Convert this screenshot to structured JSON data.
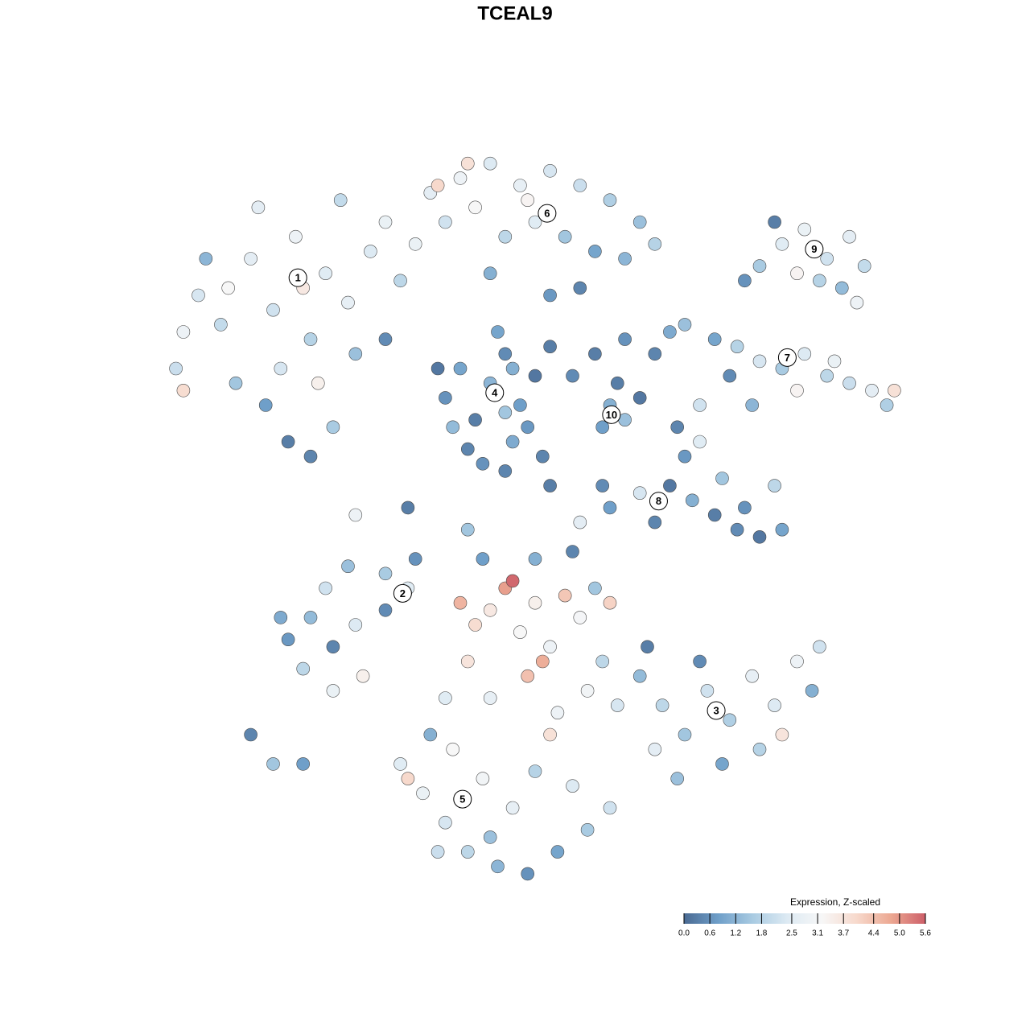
{
  "chart_data": {
    "type": "scatter",
    "title": "TCEAL9",
    "xlim": [
      -50,
      50
    ],
    "ylim": [
      -50,
      50
    ],
    "x": [
      -45,
      -42,
      -38,
      -35,
      -32,
      -30,
      -28,
      -25,
      -22,
      -20,
      -40,
      -36,
      -33,
      -30,
      -27,
      -48,
      -47,
      -44,
      -26,
      -18,
      -34,
      -37,
      -31,
      -41,
      -29,
      -24,
      -20,
      -47,
      -14,
      -10,
      -6,
      -2,
      2,
      6,
      10,
      14,
      -12,
      -8,
      -4,
      0,
      4,
      8,
      12,
      16,
      -1,
      -16,
      6,
      2,
      -6,
      -9,
      -13,
      -12,
      -10,
      -8,
      -6,
      -4,
      -2,
      0,
      -3,
      -9,
      -1,
      -11,
      -5,
      2,
      -7,
      -4,
      1,
      -13,
      -3,
      8,
      12,
      16,
      10,
      12,
      9,
      14,
      5,
      18,
      11,
      30,
      33,
      36,
      39,
      42,
      44,
      41,
      35,
      38,
      43,
      28,
      32,
      20,
      24,
      27,
      30,
      33,
      36,
      39,
      42,
      45,
      47,
      26,
      22,
      29,
      35,
      40,
      48,
      19,
      20,
      18,
      21,
      24,
      27,
      30,
      33,
      28,
      25,
      32,
      14,
      10,
      6,
      16,
      22,
      -33,
      -30,
      -27,
      -24,
      -20,
      -17,
      -28,
      -25,
      -20,
      -31,
      -34,
      -23,
      -27,
      -38,
      -35,
      -31,
      -16,
      -10,
      -8,
      -6,
      -4,
      -2,
      0,
      2,
      4,
      -3,
      6,
      -9,
      -1,
      1,
      8,
      10,
      -6,
      3,
      7,
      -12,
      5,
      0,
      -7,
      9,
      11,
      14,
      17,
      20,
      23,
      26,
      29,
      32,
      35,
      38,
      37,
      30,
      25,
      19,
      22,
      16,
      33,
      15,
      -18,
      -15,
      -12,
      -9,
      -5,
      -1,
      3,
      7,
      10,
      -3,
      -7,
      0,
      5,
      -11,
      -14,
      2,
      -17,
      -6,
      -13,
      -24,
      -17,
      -9,
      -4,
      2,
      9
    ],
    "y": [
      30,
      26,
      35,
      28,
      38,
      24,
      33,
      29,
      36,
      40,
      18,
      15,
      10,
      8,
      12,
      20,
      25,
      35,
      43,
      32,
      20,
      42,
      31,
      31,
      18,
      22,
      24,
      17,
      44,
      46,
      48,
      45,
      47,
      45,
      43,
      40,
      40,
      42,
      38,
      40,
      38,
      36,
      35,
      37,
      43,
      37,
      31,
      30,
      33,
      48,
      45,
      16,
      20,
      13,
      18,
      22,
      15,
      19,
      10,
      9,
      12,
      12,
      25,
      23,
      7,
      14,
      8,
      20,
      20,
      22,
      24,
      22,
      15,
      13,
      12,
      16,
      19,
      25,
      18,
      34,
      37,
      39,
      35,
      38,
      34,
      31,
      33,
      32,
      29,
      32,
      40,
      26,
      24,
      23,
      21,
      20,
      22,
      19,
      18,
      17,
      15,
      19,
      15,
      15,
      17,
      21,
      17,
      12,
      8,
      4,
      2,
      0,
      -2,
      -3,
      -2,
      1,
      5,
      4,
      3,
      1,
      -1,
      -1,
      10,
      -17,
      -14,
      -18,
      -15,
      -8,
      -10,
      -10,
      -7,
      -13,
      -21,
      -14,
      -22,
      -24,
      -30,
      -34,
      -34,
      -6,
      -12,
      -15,
      -13,
      -10,
      -16,
      -12,
      -18,
      -11,
      -9,
      -14,
      -20,
      -22,
      -20,
      -10,
      -12,
      -25,
      -27,
      -24,
      -25,
      -5,
      -6,
      -6,
      -20,
      -26,
      -22,
      -26,
      -30,
      -24,
      -28,
      -22,
      -26,
      -20,
      -18,
      -24,
      -32,
      -34,
      -36,
      -20,
      -32,
      -30,
      -18,
      -34,
      -38,
      -42,
      -46,
      -48,
      -49,
      -46,
      -43,
      -40,
      -40,
      -36,
      -35,
      -37,
      -32,
      -30,
      -30,
      -36,
      -44,
      -46,
      0,
      1,
      -2,
      6,
      4,
      4
    ],
    "values": [
      2.3,
      2.0,
      2.6,
      2.2,
      2.9,
      1.8,
      2.5,
      2.7,
      2.4,
      2.8,
      1.5,
      0.8,
      0.3,
      0.4,
      1.6,
      2.1,
      2.9,
      1.2,
      2.0,
      1.9,
      2.3,
      2.6,
      3.6,
      3.2,
      3.4,
      1.4,
      0.5,
      3.9,
      2.6,
      2.9,
      2.4,
      2.7,
      2.3,
      2.1,
      1.7,
      1.4,
      2.2,
      3.2,
      1.9,
      2.5,
      1.5,
      0.9,
      1.2,
      1.8,
      3.3,
      2.8,
      0.4,
      0.7,
      1.1,
      3.8,
      4.0,
      0.6,
      0.9,
      0.3,
      1.2,
      0.5,
      0.8,
      0.2,
      1.0,
      0.4,
      0.7,
      1.3,
      0.9,
      0.3,
      0.6,
      1.5,
      0.4,
      0.2,
      1.1,
      0.3,
      0.6,
      0.4,
      1.1,
      1.4,
      0.8,
      0.2,
      0.5,
      1.0,
      0.3,
      1.6,
      2.5,
      2.8,
      2.2,
      2.6,
      2.0,
      1.3,
      3.3,
      1.8,
      2.9,
      0.6,
      0.3,
      1.4,
      0.9,
      1.8,
      2.3,
      1.6,
      2.4,
      1.9,
      2.1,
      2.6,
      1.7,
      0.5,
      2.2,
      1.2,
      3.3,
      2.8,
      3.8,
      0.4,
      0.7,
      0.2,
      1.1,
      0.3,
      0.5,
      0.2,
      0.9,
      0.6,
      1.5,
      1.9,
      2.3,
      0.8,
      2.6,
      0.4,
      2.5,
      0.7,
      1.3,
      0.4,
      2.4,
      1.6,
      2.5,
      2.2,
      1.4,
      0.5,
      1.9,
      1.0,
      3.4,
      2.8,
      0.4,
      1.5,
      0.8,
      0.6,
      4.6,
      3.9,
      3.6,
      4.9,
      3.2,
      3.4,
      2.9,
      4.3,
      5.5,
      3.1,
      3.7,
      4.4,
      4.7,
      1.5,
      4.1,
      2.7,
      2.9,
      3.0,
      2.5,
      0.4,
      1.1,
      0.8,
      1.9,
      2.3,
      1.3,
      1.9,
      1.5,
      2.2,
      1.7,
      2.7,
      2.4,
      2.9,
      2.2,
      1.1,
      1.8,
      0.9,
      1.4,
      0.5,
      2.6,
      3.7,
      0.3,
      2.5,
      2.8,
      2.3,
      1.9,
      1.2,
      0.6,
      0.9,
      1.6,
      2.2,
      2.7,
      3.0,
      1.8,
      2.4,
      3.2,
      1.1,
      3.8,
      4.0,
      1.4,
      2.1,
      2.9,
      0.3,
      1.5,
      0.4,
      0.3,
      0.5
    ],
    "clusters": [
      {
        "label": "1",
        "x": -31.7,
        "y": 32.4
      },
      {
        "label": "2",
        "x": -17.7,
        "y": -10.7
      },
      {
        "label": "3",
        "x": 24.2,
        "y": -26.7
      },
      {
        "label": "4",
        "x": -5.4,
        "y": 16.7
      },
      {
        "label": "5",
        "x": -9.7,
        "y": -38.8
      },
      {
        "label": "6",
        "x": 1.6,
        "y": 41.2
      },
      {
        "label": "7",
        "x": 33.7,
        "y": 21.5
      },
      {
        "label": "8",
        "x": 16.5,
        "y": 1.9
      },
      {
        "label": "9",
        "x": 37.3,
        "y": 36.3
      },
      {
        "label": "10",
        "x": 10.2,
        "y": 13.7
      }
    ],
    "colorbar": {
      "title": "Expression, Z-scaled",
      "lim": [
        0,
        5.6
      ],
      "ticks": [
        {
          "value": 0,
          "label": "0.0"
        },
        0.6,
        1.2,
        1.8,
        2.5,
        3.1,
        3.7,
        4.4,
        {
          "value": 5,
          "label": "5.0"
        },
        5.6
      ],
      "colormap": [
        "#4a6a93",
        "#6f9fc9",
        "#a9cbe2",
        "#ddeaf3",
        "#f7f7f7",
        "#f7d9cc",
        "#eca892",
        "#cd5f69"
      ]
    }
  }
}
